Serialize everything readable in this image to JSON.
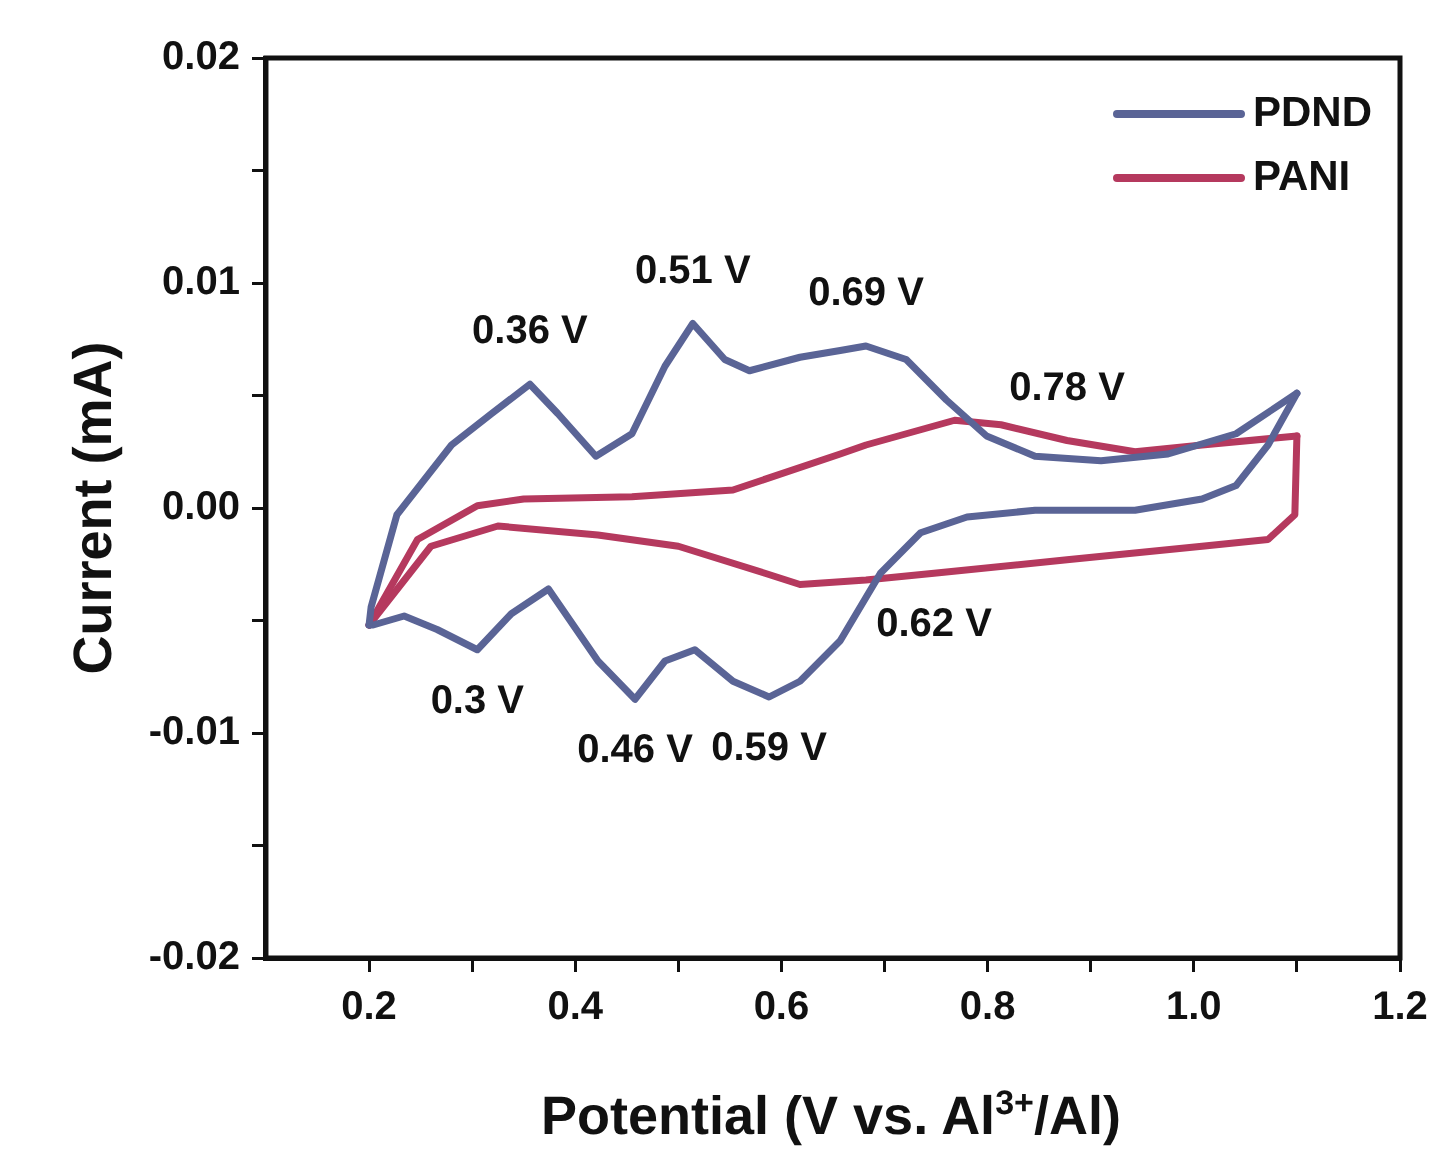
{
  "chart_data": {
    "type": "line",
    "xlabel": "Potential (V vs. Al$^{3+}$/Al)",
    "ylabel": "Current (mA)",
    "xlim": [
      0.1,
      1.2
    ],
    "ylim": [
      -0.02,
      0.02
    ],
    "xticks": [
      0.2,
      {
        "value": 0.3,
        "label": null
      },
      0.4,
      {
        "value": 0.5,
        "label": null
      },
      0.6,
      {
        "value": 0.7,
        "label": null
      },
      0.8,
      {
        "value": 0.9,
        "label": null
      },
      {
        "value": 1.0,
        "label": "1.0"
      },
      {
        "value": 1.1,
        "label": null
      },
      1.2
    ],
    "yticks": [
      {
        "value": -0.02,
        "label": "-0.02"
      },
      {
        "value": -0.015,
        "label": null
      },
      {
        "value": -0.01,
        "label": "-0.01"
      },
      {
        "value": -0.005,
        "label": null
      },
      {
        "value": 0,
        "label": "0.00"
      },
      {
        "value": 0.005,
        "label": null
      },
      {
        "value": 0.01,
        "label": "0.01"
      },
      {
        "value": 0.015,
        "label": null
      },
      {
        "value": 0.02,
        "label": "0.02"
      }
    ],
    "legend": "top right",
    "marker": "none",
    "line_style": "solid",
    "series": [
      {
        "name": "PDND",
        "color": "#5a6496",
        "x": [
          0.2,
          0.202,
          0.227,
          0.28,
          0.319,
          0.356,
          0.383,
          0.42,
          0.455,
          0.487,
          0.514,
          0.545,
          0.569,
          0.618,
          0.657,
          0.682,
          0.721,
          0.76,
          0.799,
          0.846,
          0.91,
          0.975,
          1.041,
          1.1
        ],
        "values": [
          -0.0052,
          -0.0044,
          -0.0003,
          0.0028,
          0.0042,
          0.0055,
          0.0042,
          0.0023,
          0.0033,
          0.0063,
          0.0082,
          0.0066,
          0.0061,
          0.0067,
          0.007,
          0.0072,
          0.0066,
          0.0048,
          0.0032,
          0.0023,
          0.0021,
          0.0024,
          0.0033,
          0.0051
        ]
      },
      {
        "color": "#5a6496",
        "x": [
          1.1,
          1.072,
          1.041,
          1.008,
          0.943,
          0.846,
          0.78,
          0.735,
          0.696,
          0.657,
          0.618,
          0.588,
          0.553,
          0.516,
          0.487,
          0.458,
          0.422,
          0.374,
          0.338,
          0.305,
          0.266,
          0.234,
          0.204,
          0.2
        ],
        "values": [
          0.0051,
          0.0028,
          0.001,
          0.0004,
          -0.0001,
          -0.0001,
          -0.0004,
          -0.0011,
          -0.0029,
          -0.0059,
          -0.0077,
          -0.0084,
          -0.0077,
          -0.0063,
          -0.0068,
          -0.0085,
          -0.0068,
          -0.0036,
          -0.0047,
          -0.0063,
          -0.0054,
          -0.0048,
          -0.0052,
          -0.0052
        ]
      },
      {
        "name": "PANI",
        "color": "#b5395e",
        "x": [
          0.2,
          0.247,
          0.305,
          0.35,
          0.455,
          0.553,
          0.657,
          0.682,
          0.768,
          0.813,
          0.877,
          0.943,
          1.008,
          1.1
        ],
        "values": [
          -0.0052,
          -0.0014,
          0.0001,
          0.0004,
          0.0005,
          0.0008,
          0.0024,
          0.0028,
          0.0039,
          0.0037,
          0.003,
          0.0025,
          0.0028,
          0.0032
        ]
      },
      {
        "color": "#b5395e",
        "x": [
          1.1,
          1.098,
          1.072,
          1.008,
          0.877,
          0.748,
          0.682,
          0.618,
          0.584,
          0.5,
          0.422,
          0.325,
          0.26,
          0.2
        ],
        "values": [
          0.0032,
          -0.0003,
          -0.0014,
          -0.0017,
          -0.0023,
          -0.0029,
          -0.0032,
          -0.0034,
          -0.0029,
          -0.0017,
          -0.0012,
          -0.0008,
          -0.0017,
          -0.0052
        ]
      }
    ],
    "annotations": [
      {
        "text": "0.36 V",
        "x": 0.356,
        "y": 0.0055
      },
      {
        "text": "0.51 V",
        "x": 0.514,
        "y": 0.0082
      },
      {
        "text": "0.69 V",
        "x": 0.682,
        "y": 0.0072
      },
      {
        "text": "0.78 V",
        "x": 0.877,
        "y": 0.003
      },
      {
        "text": "0.62 V",
        "x": 0.748,
        "y": -0.0029
      },
      {
        "text": "0.59 V",
        "x": 0.588,
        "y": -0.0084
      },
      {
        "text": "0.46 V",
        "x": 0.458,
        "y": -0.0085
      },
      {
        "text": "0.3 V",
        "x": 0.305,
        "y": -0.0063
      }
    ]
  }
}
